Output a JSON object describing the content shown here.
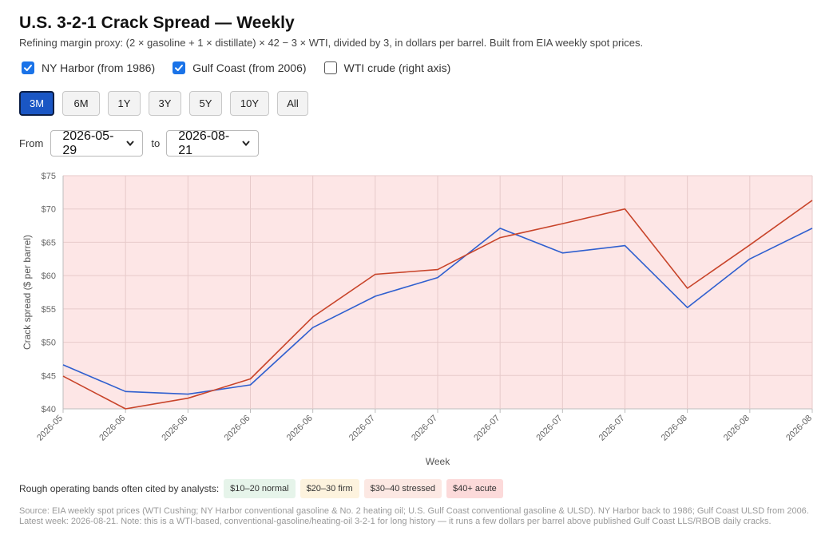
{
  "header": {
    "title": "U.S. 3-2-1 Crack Spread — Weekly",
    "subtitle": "Refining margin proxy: (2 × gasoline + 1 × distillate) × 42 − 3 × WTI, divided by 3, in dollars per barrel. Built from EIA weekly spot prices."
  },
  "toggles": [
    {
      "label": "NY Harbor (from 1986)",
      "checked": true
    },
    {
      "label": "Gulf Coast (from 2006)",
      "checked": true
    },
    {
      "label": "WTI crude (right axis)",
      "checked": false
    }
  ],
  "ranges": {
    "buttons": [
      "3M",
      "6M",
      "1Y",
      "3Y",
      "5Y",
      "10Y",
      "All"
    ],
    "active": "3M"
  },
  "dates": {
    "from_label": "From",
    "from_value": "2026-05-29",
    "to_label": "to",
    "to_value": "2026-08-21"
  },
  "chart_data": {
    "type": "line",
    "title": "",
    "xlabel": "Week",
    "ylabel": "Crack spread ($ per barrel)",
    "x_tick_labels": [
      "2026-05",
      "2026-06",
      "2026-06",
      "2026-06",
      "2026-06",
      "2026-07",
      "2026-07",
      "2026-07",
      "2026-07",
      "2026-07",
      "2026-08",
      "2026-08",
      "2026-08"
    ],
    "y_tick_labels": [
      "$40",
      "$45",
      "$50",
      "$55",
      "$60",
      "$65",
      "$70",
      "$75"
    ],
    "ylim": [
      40,
      75
    ],
    "grid": true,
    "background_band": {
      "from": 40,
      "to": 75,
      "color": "#fde6e6"
    },
    "series": [
      {
        "color": "#2f5fcf",
        "values": [
          46.6,
          42.6,
          42.2,
          43.6,
          52.2,
          56.9,
          59.7,
          67.1,
          63.4,
          64.5,
          55.2,
          62.5,
          67.1
        ]
      },
      {
        "color": "#c8442a",
        "values": [
          44.9,
          40.0,
          41.6,
          44.5,
          53.8,
          60.2,
          60.9,
          65.7,
          67.8,
          70.0,
          58.1,
          64.6,
          71.3
        ]
      }
    ]
  },
  "bands": {
    "label": "Rough operating bands often cited by analysts:",
    "items": [
      {
        "text": "$10–20 normal",
        "color": "#e6f4ea"
      },
      {
        "text": "$20–30 firm",
        "color": "#fdf3de"
      },
      {
        "text": "$30–40 stressed",
        "color": "#fce8e3"
      },
      {
        "text": "$40+ acute",
        "color": "#fcdada"
      }
    ]
  },
  "footer": {
    "source": "Source: EIA weekly spot prices (WTI Cushing; NY Harbor conventional gasoline & No. 2 heating oil; U.S. Gulf Coast conventional gasoline & ULSD). NY Harbor back to 1986; Gulf Coast ULSD from 2006.",
    "latest": "Latest week: 2026-08-21. Note: this is a WTI-based, conventional-gasoline/heating-oil 3-2-1 for long history — it runs a few dollars per barrel above published Gulf Coast LLS/RBOB daily cracks."
  }
}
